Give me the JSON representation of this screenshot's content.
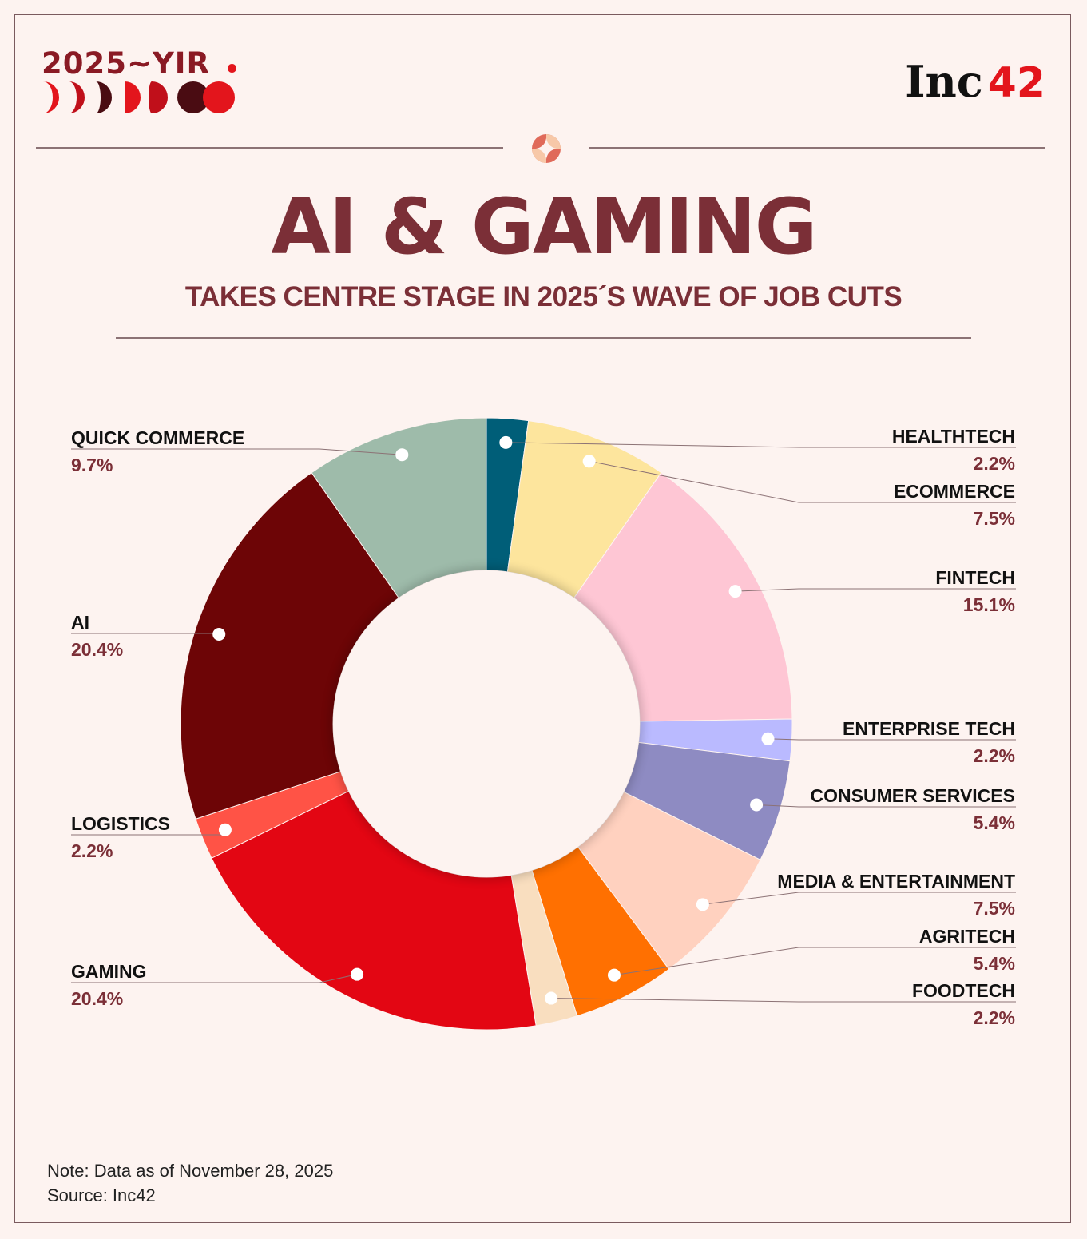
{
  "header": {
    "yir_label": "2025~YIR",
    "brand_text": "Inc",
    "brand_number": "42"
  },
  "title": "AI & GAMING",
  "subtitle": "TAKES CENTRE STAGE IN 2025´S WAVE OF JOB CUTS",
  "footnote": {
    "note": "Note: Data as of November 28, 2025",
    "source": "Source: Inc42"
  },
  "colors": {
    "background": "#fdf3f0",
    "title": "#7b2f37",
    "brand_red": "#e3151c"
  },
  "chart_data": {
    "type": "pie",
    "donut": true,
    "start": "12 o'clock, clockwise",
    "slices": [
      {
        "label": "HEALTHTECH",
        "value": 2.2,
        "display": "2.2%",
        "color": "#005e78",
        "side": "right"
      },
      {
        "label": "ECOMMERCE",
        "value": 7.5,
        "display": "7.5%",
        "color": "#fde59d",
        "side": "right"
      },
      {
        "label": "FINTECH",
        "value": 15.1,
        "display": "15.1%",
        "color": "#fec6d4",
        "side": "right"
      },
      {
        "label": "ENTERPRISE TECH",
        "value": 2.2,
        "display": "2.2%",
        "color": "#babaff",
        "side": "right"
      },
      {
        "label": "CONSUMER SERVICES",
        "value": 5.4,
        "display": "5.4%",
        "color": "#8e8bc2",
        "side": "right"
      },
      {
        "label": "MEDIA & ENTERTAINMENT",
        "value": 7.5,
        "display": "7.5%",
        "color": "#ffd1bf",
        "side": "right"
      },
      {
        "label": "AGRITECH",
        "value": 5.4,
        "display": "5.4%",
        "color": "#ff7001",
        "side": "right"
      },
      {
        "label": "FOODTECH",
        "value": 2.2,
        "display": "2.2%",
        "color": "#f9debf",
        "side": "right"
      },
      {
        "label": "GAMING",
        "value": 20.4,
        "display": "20.4%",
        "color": "#e30613",
        "side": "left"
      },
      {
        "label": "LOGISTICS",
        "value": 2.2,
        "display": "2.2%",
        "color": "#ff5346",
        "side": "left"
      },
      {
        "label": "AI",
        "value": 20.4,
        "display": "20.4%",
        "color": "#6d0506",
        "side": "left"
      },
      {
        "label": "QUICK COMMERCE",
        "value": 9.7,
        "display": "9.7%",
        "color": "#9ebbaa",
        "side": "left"
      }
    ]
  }
}
